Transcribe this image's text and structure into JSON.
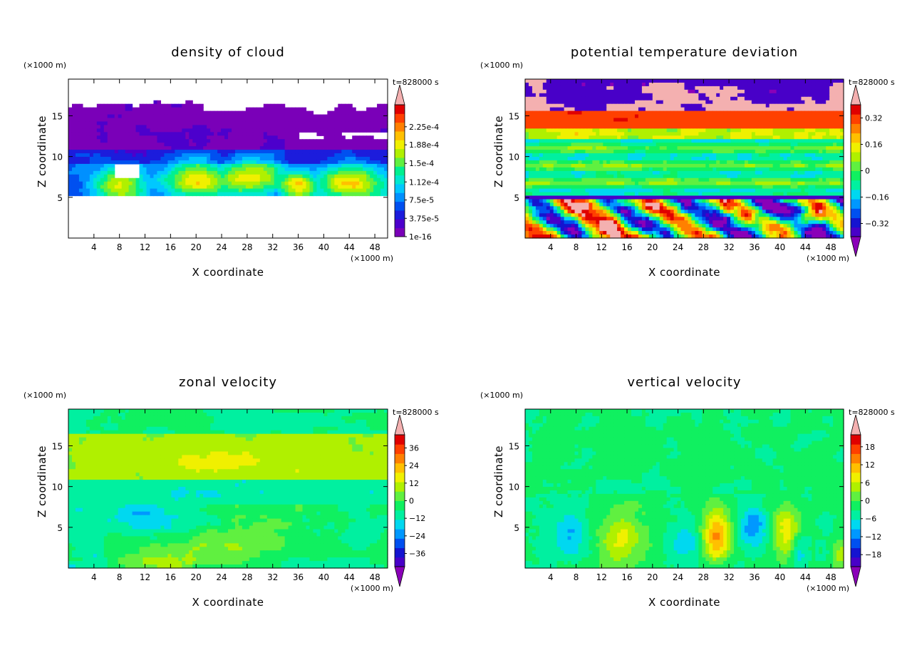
{
  "chart_data": [
    {
      "type": "heatmap",
      "title": "density of cloud",
      "xlabel": "X coordinate",
      "ylabel": "Z coordinate",
      "x_unit": "(×1000 m)",
      "y_unit": "(×1000 m)",
      "time_label": "t=828000 s",
      "xlim": [
        0,
        50
      ],
      "ylim": [
        0,
        19.5
      ],
      "x_ticks": [
        4,
        8,
        12,
        16,
        20,
        24,
        28,
        32,
        36,
        40,
        44,
        48
      ],
      "y_ticks": [
        5,
        10,
        15
      ],
      "colorbar": {
        "labels": [
          "2.25e-4",
          "1.88e-4",
          "1.5e-4",
          "1.12e-4",
          "7.5e-5",
          "3.75e-5",
          "1e-16"
        ],
        "label_values": [
          0.000225,
          0.000188,
          0.00015,
          0.000112,
          7.5e-05,
          3.75e-05,
          1e-16
        ],
        "range": [
          0,
          0.00027
        ],
        "extend_top": true,
        "extend_bottom": false
      },
      "field": "cloud",
      "colors": [
        "#7a00b8",
        "#4c00cc",
        "#1c1cdc",
        "#0050f0",
        "#0090ff",
        "#00c8ff",
        "#00e8d0",
        "#00f090",
        "#60f040",
        "#b0f000",
        "#f0f000",
        "#ffc000",
        "#ff8000",
        "#ff4000",
        "#e00000",
        "#f4b0b0"
      ]
    },
    {
      "type": "heatmap",
      "title": "potential temperature deviation",
      "xlabel": "X coordinate",
      "ylabel": "Z coordinate",
      "x_unit": "(×1000 m)",
      "y_unit": "(×1000 m)",
      "time_label": "t=828000 s",
      "xlim": [
        0,
        50
      ],
      "ylim": [
        0,
        19.5
      ],
      "x_ticks": [
        4,
        8,
        12,
        16,
        20,
        24,
        28,
        32,
        36,
        40,
        44,
        48
      ],
      "y_ticks": [
        5,
        10,
        15
      ],
      "colorbar": {
        "labels": [
          "0.32",
          "0.16",
          "0",
          "−0.16",
          "−0.32"
        ],
        "label_values": [
          0.32,
          0.16,
          0,
          -0.16,
          -0.32
        ],
        "range": [
          -0.4,
          0.4
        ],
        "extend_top": true,
        "extend_bottom": true
      },
      "field": "theta",
      "colors": [
        "#8a00b8",
        "#4800c8",
        "#1414d0",
        "#0050f0",
        "#0098ff",
        "#00d8f0",
        "#00f0a0",
        "#10f060",
        "#60f040",
        "#b0f000",
        "#f0f000",
        "#ffc000",
        "#ff8000",
        "#ff4000",
        "#e00000",
        "#f4b0b0"
      ]
    },
    {
      "type": "heatmap",
      "title": "zonal velocity",
      "xlabel": "X coordinate",
      "ylabel": "Z coordinate",
      "x_unit": "(×1000 m)",
      "y_unit": "(×1000 m)",
      "time_label": "t=828000 s",
      "xlim": [
        0,
        50
      ],
      "ylim": [
        0,
        19.5
      ],
      "x_ticks": [
        4,
        8,
        12,
        16,
        20,
        24,
        28,
        32,
        36,
        40,
        44,
        48
      ],
      "y_ticks": [
        5,
        10,
        15
      ],
      "colorbar": {
        "labels": [
          "36",
          "24",
          "12",
          "0",
          "−12",
          "−24",
          "−36"
        ],
        "label_values": [
          36,
          24,
          12,
          0,
          -12,
          -24,
          -36
        ],
        "range": [
          -45,
          45
        ],
        "extend_top": true,
        "extend_bottom": true
      },
      "field": "zonal",
      "colors": [
        "#8a00b8",
        "#4800c8",
        "#1414d0",
        "#0050f0",
        "#0098ff",
        "#00d8f0",
        "#00f0a0",
        "#10f060",
        "#60f040",
        "#b0f000",
        "#f0f000",
        "#ffc000",
        "#ff8000",
        "#ff4000",
        "#e00000",
        "#f4b0b0"
      ]
    },
    {
      "type": "heatmap",
      "title": "vertical velocity",
      "xlabel": "X coordinate",
      "ylabel": "Z coordinate",
      "x_unit": "(×1000 m)",
      "y_unit": "(×1000 m)",
      "time_label": "t=828000 s",
      "xlim": [
        0,
        50
      ],
      "ylim": [
        0,
        19.5
      ],
      "x_ticks": [
        4,
        8,
        12,
        16,
        20,
        24,
        28,
        32,
        36,
        40,
        44,
        48
      ],
      "y_ticks": [
        5,
        10,
        15
      ],
      "colorbar": {
        "labels": [
          "18",
          "12",
          "6",
          "0",
          "−6",
          "−12",
          "−18"
        ],
        "label_values": [
          18,
          12,
          6,
          0,
          -6,
          -12,
          -18
        ],
        "range": [
          -22,
          22
        ],
        "extend_top": true,
        "extend_bottom": true
      },
      "field": "vertical",
      "colors": [
        "#8a00b8",
        "#4800c8",
        "#1414d0",
        "#0050f0",
        "#0098ff",
        "#00d8f0",
        "#00f0a0",
        "#10f060",
        "#60f040",
        "#b0f000",
        "#f0f000",
        "#ffc000",
        "#ff8000",
        "#ff4000",
        "#e00000",
        "#f4b0b0"
      ]
    }
  ]
}
